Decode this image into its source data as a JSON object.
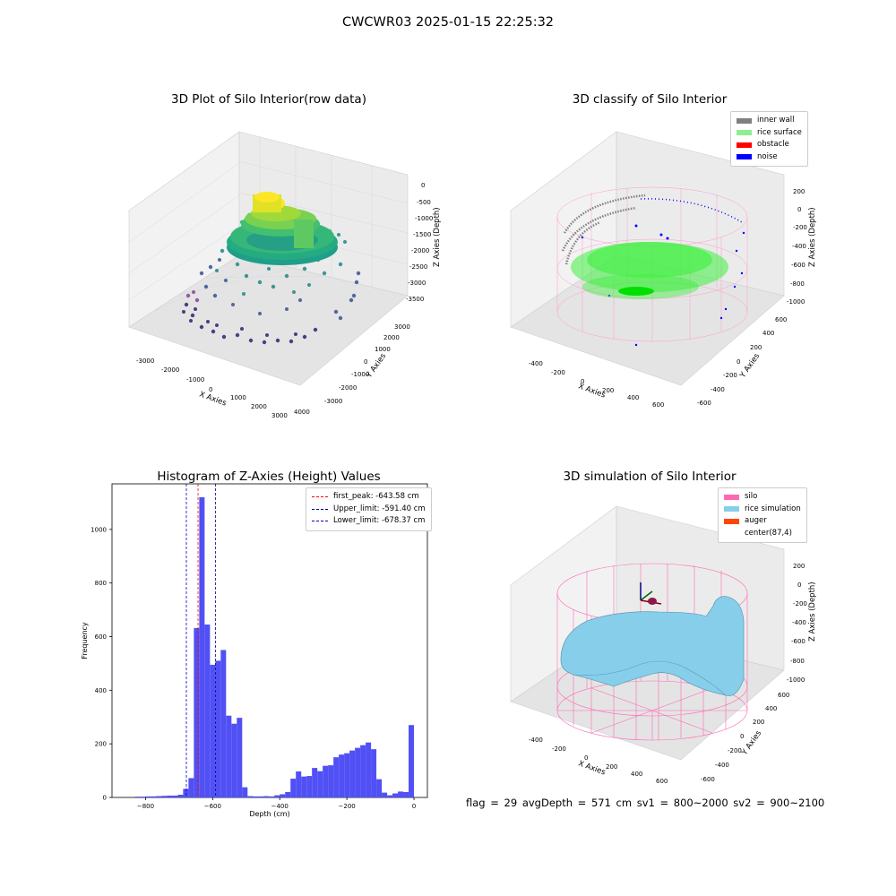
{
  "figure": {
    "suptitle": "CWCWR03 2025-01-15 22:25:32",
    "footer": "flag = 29  avgDepth = 571 cm  sv1 = 800~2000  sv2 = 900~2100"
  },
  "panels": {
    "raw": {
      "title": "3D Plot of Silo Interior(row data)",
      "xlabel": "X Axies",
      "ylabel": "Y Axies",
      "zlabel": "Z Axies (Depth)",
      "xticks": [
        "-3000",
        "-2000",
        "-1000",
        "0",
        "1000",
        "2000",
        "3000",
        "4000"
      ],
      "yticks": [
        "-3000",
        "-2000",
        "-1000",
        "0",
        "1000",
        "2000",
        "3000"
      ],
      "zticks": [
        "0",
        "-500",
        "-1000",
        "-1500",
        "-2000",
        "-2500",
        "-3000",
        "-3500"
      ]
    },
    "classify": {
      "title": "3D classify of Silo Interior",
      "xlabel": "X Axies",
      "ylabel": "Y Axies",
      "zlabel": "Z Axies (Depth)",
      "xticks": [
        "-400",
        "-200",
        "0",
        "200",
        "400",
        "600"
      ],
      "yticks": [
        "-600",
        "-400",
        "-200",
        "0",
        "200",
        "400",
        "600"
      ],
      "zticks": [
        "200",
        "0",
        "-200",
        "-400",
        "-600",
        "-800",
        "-1000"
      ],
      "legend": [
        {
          "label": "inner wall",
          "color": "#808080"
        },
        {
          "label": "rice surface",
          "color": "#90ee90"
        },
        {
          "label": "obstacle",
          "color": "#ff0000"
        },
        {
          "label": "noise",
          "color": "#0000ff"
        }
      ]
    },
    "simulation": {
      "title": "3D simulation of Silo Interior",
      "xlabel": "X Axies",
      "ylabel": "Y Axies",
      "zlabel": "Z Axies (Depth)",
      "xticks": [
        "-400",
        "-200",
        "0",
        "200",
        "400",
        "600"
      ],
      "yticks": [
        "-600",
        "-400",
        "-200",
        "0",
        "200",
        "400",
        "600"
      ],
      "zticks": [
        "200",
        "0",
        "-200",
        "-400",
        "-600",
        "-800",
        "-1000"
      ],
      "legend": [
        {
          "label": "silo",
          "color": "#ff69b4"
        },
        {
          "label": "rice simulation",
          "color": "#87ceeb"
        },
        {
          "label": "auger",
          "color": "#ff4500"
        },
        {
          "label": "center(87,4)",
          "color": ""
        }
      ]
    }
  },
  "chart_data": {
    "type": "bar",
    "title": "Histogram of Z-Axies (Height) Values",
    "xlabel": "Depth (cm)",
    "ylabel": "Frequency",
    "bar_color": "#5050f5",
    "xlim": [
      -900,
      40
    ],
    "ylim": [
      0,
      1170
    ],
    "xticks": [
      -800,
      -600,
      -400,
      -200,
      0
    ],
    "yticks": [
      0,
      200,
      400,
      600,
      800,
      1000
    ],
    "bin_width": 16,
    "bins": [
      {
        "x": -832,
        "count": 3
      },
      {
        "x": -816,
        "count": 3
      },
      {
        "x": -800,
        "count": 4
      },
      {
        "x": -784,
        "count": 4
      },
      {
        "x": -768,
        "count": 5
      },
      {
        "x": -752,
        "count": 6
      },
      {
        "x": -736,
        "count": 7
      },
      {
        "x": -720,
        "count": 7
      },
      {
        "x": -704,
        "count": 10
      },
      {
        "x": -688,
        "count": 32
      },
      {
        "x": -672,
        "count": 72
      },
      {
        "x": -656,
        "count": 632
      },
      {
        "x": -640,
        "count": 1120
      },
      {
        "x": -624,
        "count": 645
      },
      {
        "x": -608,
        "count": 495
      },
      {
        "x": -592,
        "count": 510
      },
      {
        "x": -576,
        "count": 550
      },
      {
        "x": -560,
        "count": 305
      },
      {
        "x": -544,
        "count": 275
      },
      {
        "x": -528,
        "count": 297
      },
      {
        "x": -512,
        "count": 38
      },
      {
        "x": -496,
        "count": 5
      },
      {
        "x": -480,
        "count": 4
      },
      {
        "x": -464,
        "count": 4
      },
      {
        "x": -448,
        "count": 5
      },
      {
        "x": -432,
        "count": 4
      },
      {
        "x": -416,
        "count": 8
      },
      {
        "x": -400,
        "count": 12
      },
      {
        "x": -384,
        "count": 20
      },
      {
        "x": -368,
        "count": 70
      },
      {
        "x": -352,
        "count": 97
      },
      {
        "x": -336,
        "count": 78
      },
      {
        "x": -320,
        "count": 80
      },
      {
        "x": -304,
        "count": 110
      },
      {
        "x": -288,
        "count": 98
      },
      {
        "x": -272,
        "count": 118
      },
      {
        "x": -256,
        "count": 120
      },
      {
        "x": -240,
        "count": 150
      },
      {
        "x": -224,
        "count": 160
      },
      {
        "x": -208,
        "count": 165
      },
      {
        "x": -192,
        "count": 175
      },
      {
        "x": -176,
        "count": 185
      },
      {
        "x": -160,
        "count": 195
      },
      {
        "x": -144,
        "count": 205
      },
      {
        "x": -128,
        "count": 180
      },
      {
        "x": -112,
        "count": 68
      },
      {
        "x": -96,
        "count": 18
      },
      {
        "x": -80,
        "count": 8
      },
      {
        "x": -64,
        "count": 15
      },
      {
        "x": -48,
        "count": 22
      },
      {
        "x": -32,
        "count": 20
      },
      {
        "x": -16,
        "count": 270
      }
    ],
    "vlines": [
      {
        "label": "first_peak: -643.58 cm",
        "x": -643.58,
        "color": "#ff0000"
      },
      {
        "label": "Upper_limit: -591.40 cm",
        "x": -591.4,
        "color": "#00008b"
      },
      {
        "label": "Lower_limit: -678.37 cm",
        "x": -678.37,
        "color": "#0000cd"
      }
    ]
  }
}
